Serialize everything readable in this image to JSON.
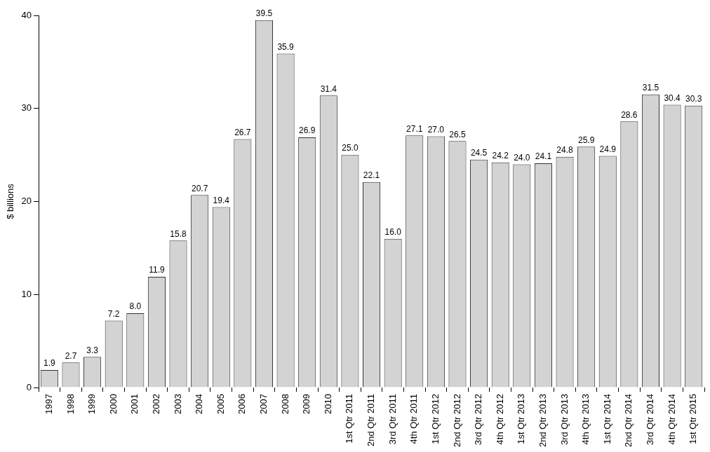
{
  "chart_data": {
    "type": "bar",
    "y_label": "$ billions",
    "categories": [
      "1997",
      "1998",
      "1999",
      "2000",
      "2001",
      "2002",
      "2003",
      "2004",
      "2005",
      "2006",
      "2007",
      "2008",
      "2009",
      "2010",
      "1st Qtr 2011",
      "2nd Qtr 2011",
      "3rd Qtr 2011",
      "4th Qtr 2011",
      "1st Qtr 2012",
      "2nd Qtr 2012",
      "3rd Qtr 2012",
      "4th Qtr 2012",
      "1st Qtr 2013",
      "2nd Qtr 2013",
      "3rd Qtr 2013",
      "4th Qtr 2013",
      "1st Qtr 2014",
      "2nd Qtr 2014",
      "3rd Qtr 2014",
      "4th Qtr 2014",
      "1st Qtr 2015"
    ],
    "values": [
      1.9,
      2.7,
      3.3,
      7.2,
      8.0,
      11.9,
      15.8,
      20.7,
      19.4,
      26.7,
      39.5,
      35.9,
      26.9,
      31.4,
      25.0,
      22.1,
      16.0,
      27.1,
      27.0,
      26.5,
      24.5,
      24.2,
      24.0,
      24.1,
      24.8,
      25.9,
      24.9,
      28.6,
      31.5,
      30.4,
      30.3
    ],
    "value_labels": [
      "1.9",
      "2.7",
      "3.3",
      "7.2",
      "8.0",
      "11.9",
      "15.8",
      "20.7",
      "19.4",
      "26.7",
      "39.5",
      "35.9",
      "26.9",
      "31.4",
      "25.0",
      "22.1",
      "16.0",
      "27.1",
      "27.0",
      "26.5",
      "24.5",
      "24.2",
      "24.0",
      "24.1",
      "24.8",
      "25.9",
      "24.9",
      "28.6",
      "31.5",
      "30.4",
      "30.3"
    ],
    "color": "#d3d3d3",
    "ylim": [
      0,
      40
    ],
    "yticks": [
      0,
      10,
      20,
      30,
      40
    ],
    "grid": false,
    "data_labels": true
  }
}
